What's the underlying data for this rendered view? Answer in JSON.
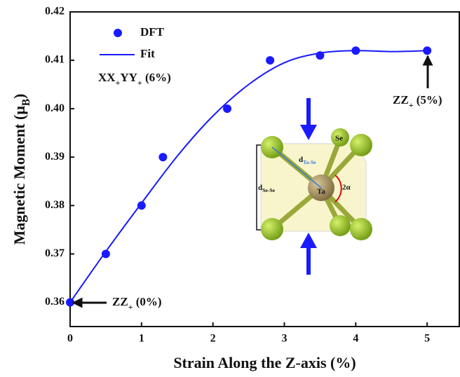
{
  "chart_data": {
    "type": "scatter",
    "xlabel": "Strain Along the Z-axis (%)",
    "ylabel": [
      "Magnetic Moment (μ",
      "B",
      ")"
    ],
    "xlim": [
      0,
      5.45
    ],
    "ylim": [
      0.355,
      0.42
    ],
    "xticks": [
      0,
      1,
      2,
      3,
      4,
      5
    ],
    "yticks": [
      {
        "value": 0.36,
        "label": "0.36"
      },
      {
        "value": 0.37,
        "label": "0.37"
      },
      {
        "value": 0.38,
        "label": "0.38"
      },
      {
        "value": 0.39,
        "label": "0.39"
      },
      {
        "value": 0.4,
        "label": "0.40"
      },
      {
        "value": 0.41,
        "label": "0.41"
      },
      {
        "value": 0.42,
        "label": "0.42"
      }
    ],
    "series": [
      {
        "name": "DFT",
        "type": "scatter",
        "color": "#1a1aff",
        "x": [
          0,
          0.5,
          1,
          1.3,
          2.2,
          2.8,
          3.5,
          4,
          5
        ],
        "values": [
          0.36,
          0.37,
          0.38,
          0.39,
          0.4,
          0.41,
          0.411,
          0.412,
          0.412
        ]
      },
      {
        "name": "Fit",
        "type": "line",
        "color": "#1a1aff",
        "x": [
          0,
          0.5,
          1,
          1.5,
          2,
          2.5,
          3,
          3.5,
          4,
          4.5,
          5
        ],
        "values": [
          0.36,
          0.3705,
          0.3805,
          0.3902,
          0.3985,
          0.405,
          0.4095,
          0.4115,
          0.412,
          0.4118,
          0.412
        ]
      }
    ],
    "legend_note": [
      "XX",
      "+",
      "YY",
      "+",
      " (6%)"
    ],
    "annotations": [
      [
        "ZZ",
        "+",
        " (0%)"
      ],
      [
        "ZZ",
        "+",
        " (5%)"
      ]
    ],
    "inset": {
      "se": "Se",
      "ta": "Ta",
      "d_ta_se": [
        "d",
        "Ta-Se"
      ],
      "d_se_se": [
        "d",
        "Se-Se"
      ],
      "angle": "2α"
    }
  }
}
